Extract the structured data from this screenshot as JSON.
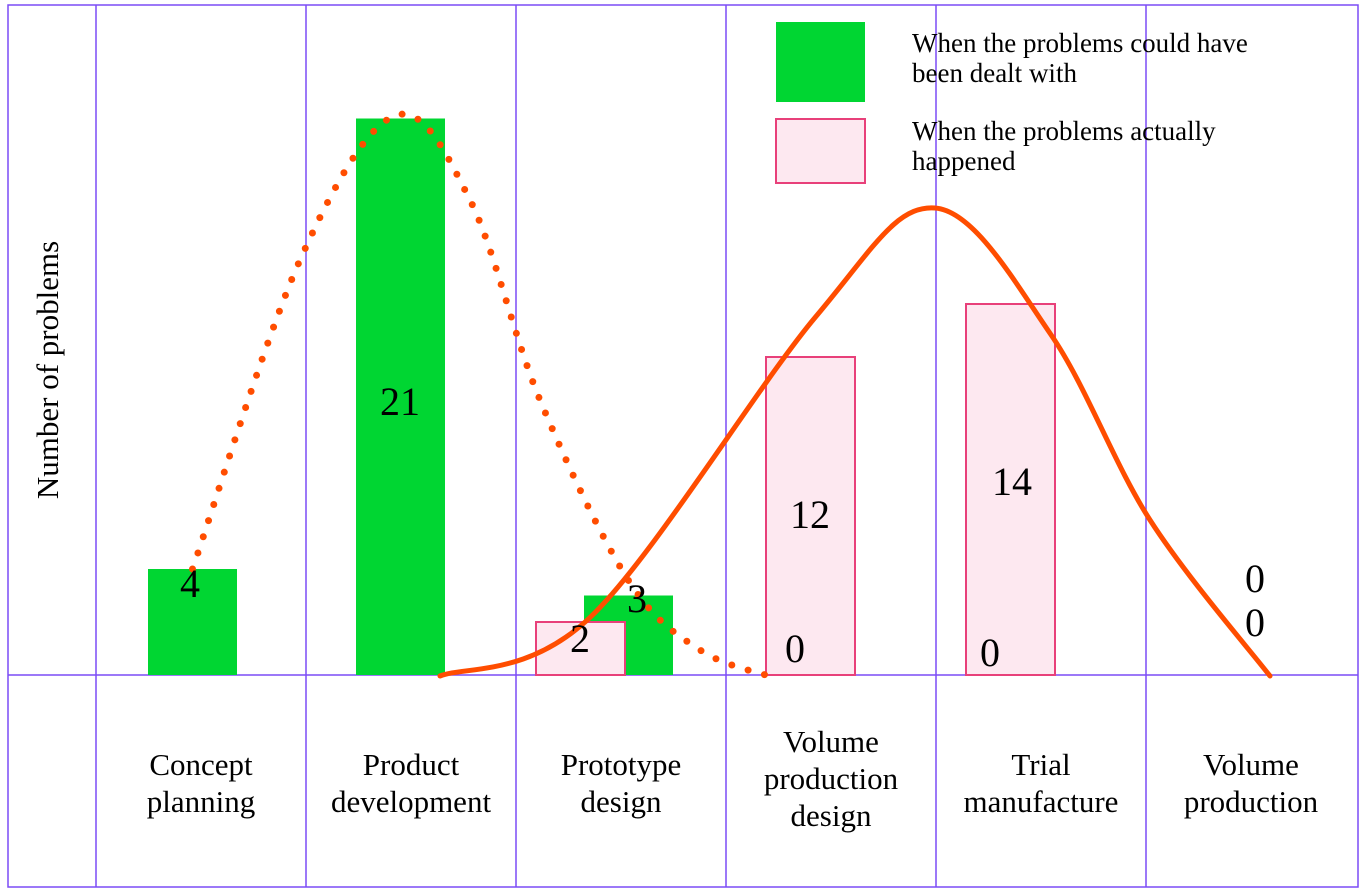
{
  "chart_data": {
    "type": "bar",
    "title": "",
    "ylabel": "Number of problems",
    "xlabel": "",
    "categories": [
      [
        "Concept",
        "planning"
      ],
      [
        "Product",
        "development"
      ],
      [
        "Prototype",
        "design"
      ],
      [
        "Volume",
        "production",
        "design"
      ],
      [
        "Trial",
        "manufacture"
      ],
      [
        "Volume",
        "production"
      ]
    ],
    "series": [
      {
        "name": "When the problems could have been dealt with",
        "legend_lines": [
          "When the problems could have",
          "been dealt with"
        ],
        "color": "#00d632",
        "values": [
          4,
          21,
          3,
          0,
          0,
          0
        ],
        "trend_line": "dotted"
      },
      {
        "name": "When the problems actually happened",
        "legend_lines": [
          "When the problems actually",
          "happened"
        ],
        "color": "#fde8f0",
        "border": "#e8407a",
        "values": [
          null,
          null,
          2,
          12,
          14,
          0
        ],
        "trend_line": "solid"
      }
    ],
    "trend_color": "#ff4d00",
    "grid_color": "#7b4cf5",
    "legend_placement": "top-right",
    "grid": true
  }
}
